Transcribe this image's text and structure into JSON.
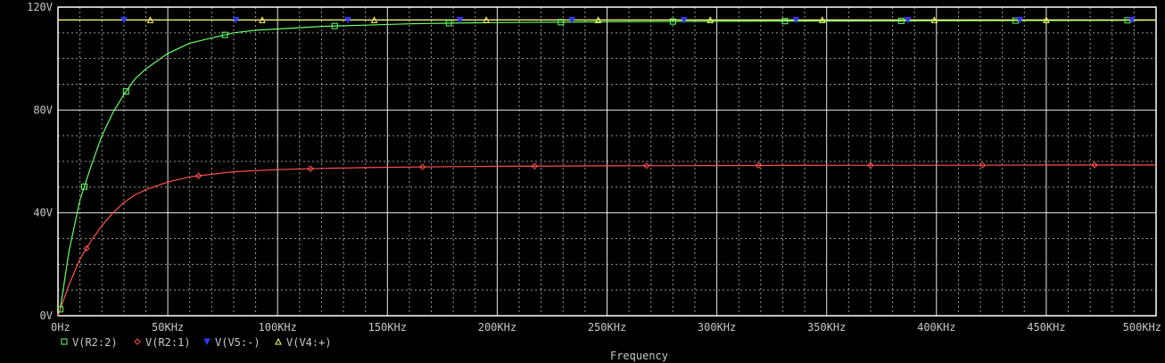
{
  "colors": {
    "background": "#000000",
    "frame": "#ffffff",
    "grid": "#ffffff",
    "text": "#c8c8c8",
    "series_V_R2_2": "#66ff66",
    "series_V_R2_1": "#ff5050",
    "series_V_V5_minus": "#3333ff",
    "series_V_V4_plus": "#ffff66"
  },
  "chart_data": {
    "type": "line",
    "xlabel": "Frequency",
    "ylabel": "",
    "xlim": [
      0,
      500
    ],
    "ylim": [
      0,
      120
    ],
    "x_unit": "KHz",
    "y_unit": "V",
    "grid": true,
    "legend_position": "bottom-left",
    "x_ticks": [
      0,
      50,
      100,
      150,
      200,
      250,
      300,
      350,
      400,
      450,
      500
    ],
    "x_tick_labels": [
      "0Hz",
      "50KHz",
      "100KHz",
      "150KHz",
      "200KHz",
      "250KHz",
      "300KHz",
      "350KHz",
      "400KHz",
      "450KHz",
      "500KHz"
    ],
    "y_ticks": [
      0,
      40,
      80,
      120
    ],
    "y_tick_labels": [
      "0V",
      "40V",
      "80V",
      "120V"
    ],
    "series": [
      {
        "name": "V(R2:2)",
        "color": "#66ff66",
        "marker": "square",
        "x": [
          0,
          1,
          5,
          10,
          15,
          20,
          25,
          30,
          35,
          40,
          45,
          50,
          60,
          70,
          80,
          90,
          100,
          120,
          140,
          160,
          180,
          200,
          250,
          300,
          350,
          400,
          450,
          500
        ],
        "y": [
          0,
          2.5,
          25,
          45,
          58,
          70,
          79,
          86,
          92,
          96,
          99,
          102,
          106,
          108,
          110,
          111,
          111.5,
          112.5,
          113,
          113.5,
          113.8,
          114,
          114.3,
          114.5,
          114.6,
          114.7,
          114.8,
          114.9
        ]
      },
      {
        "name": "V(R2:1)",
        "color": "#ff5050",
        "marker": "diamond",
        "x": [
          0,
          5,
          10,
          15,
          20,
          25,
          30,
          35,
          40,
          50,
          60,
          70,
          80,
          100,
          120,
          140,
          160,
          180,
          200,
          250,
          300,
          350,
          400,
          450,
          500
        ],
        "y": [
          0,
          12,
          22,
          29,
          35,
          40,
          44,
          47,
          49,
          52,
          54,
          55,
          56,
          56.8,
          57.3,
          57.6,
          57.8,
          58,
          58.1,
          58.3,
          58.4,
          58.5,
          58.5,
          58.6,
          58.6
        ]
      },
      {
        "name": "V(V5:-)",
        "color": "#3333ff",
        "marker": "triangle-down",
        "x": [
          0,
          500
        ],
        "y": [
          115,
          115
        ]
      },
      {
        "name": "V(V4:+)",
        "color": "#ffff66",
        "marker": "triangle-up",
        "x": [
          0,
          500
        ],
        "y": [
          115,
          115
        ]
      }
    ]
  }
}
